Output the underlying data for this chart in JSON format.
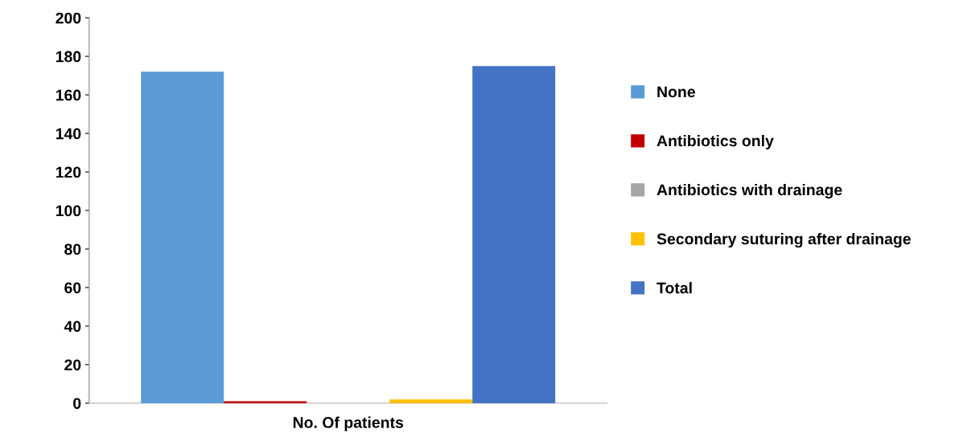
{
  "chart_data": {
    "type": "bar",
    "categories": [
      "No. Of patients"
    ],
    "series": [
      {
        "name": "None",
        "color": "#5b9bd5",
        "values": [
          172
        ]
      },
      {
        "name": "Antibiotics only",
        "color": "#c00000",
        "values": [
          1
        ]
      },
      {
        "name": "Antibiotics with drainage",
        "color": "#a5a5a5",
        "values": [
          0
        ]
      },
      {
        "name": "Secondary suturing after drainage",
        "color": "#ffc000",
        "values": [
          2
        ]
      },
      {
        "name": "Total",
        "color": "#4472c4",
        "values": [
          175
        ]
      }
    ],
    "ylim": [
      0,
      200
    ],
    "yticks": [
      0,
      20,
      40,
      60,
      80,
      100,
      120,
      140,
      160,
      180,
      200
    ],
    "grid": false,
    "legend": "right"
  }
}
